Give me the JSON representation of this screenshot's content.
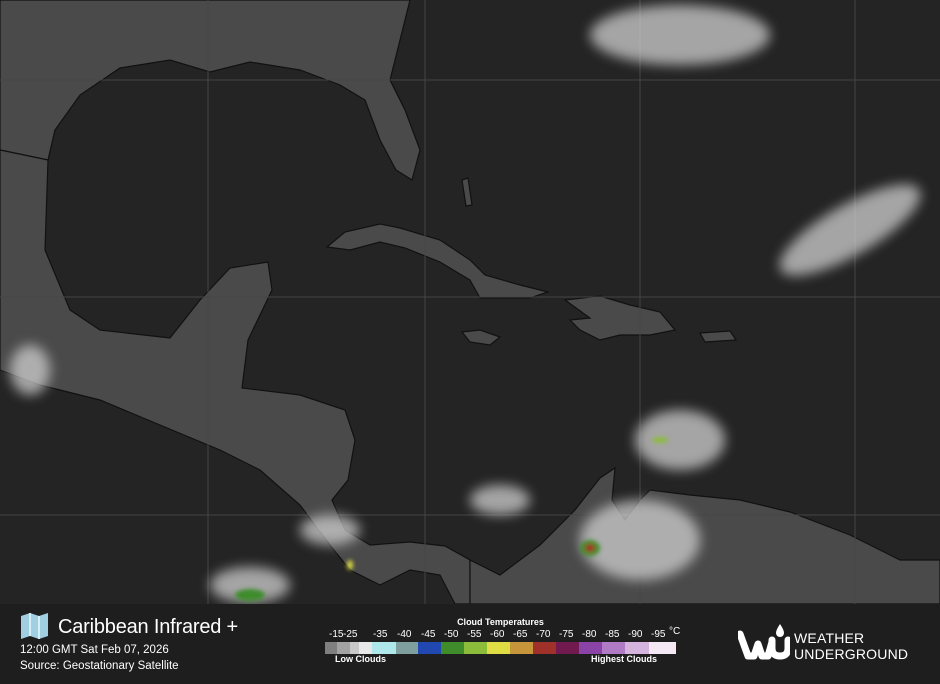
{
  "map": {
    "colors": {
      "ocean": "#242424",
      "land": "#4a4a4a",
      "grid": "#454545",
      "clouds": "#d8d8d8"
    }
  },
  "footer": {
    "icon": "map-icon",
    "title": "Caribbean Infrared +",
    "timestamp": "12:00 GMT Sat Feb 07, 2026",
    "source": "Source: Geostationary Satellite",
    "legend": {
      "title": "Cloud Temperatures",
      "unit": "°C",
      "low_label": "Low Clouds",
      "high_label": "Highest Clouds",
      "ticks": [
        "-15",
        "-25",
        "-35",
        "-40",
        "-45",
        "-50",
        "-55",
        "-60",
        "-65",
        "-70",
        "-75",
        "-80",
        "-85",
        "-90",
        "-95"
      ],
      "colors": [
        "#7f7f7f",
        "#a2a2a2",
        "#c8c8c8",
        "#e8e8e8",
        "#aee8ea",
        "#7f9f9f",
        "#2048b0",
        "#3e8c2a",
        "#8cbc3a",
        "#dede44",
        "#c8963a",
        "#a0302a",
        "#701a50",
        "#8a44a8",
        "#b07ac4",
        "#d4b4dc",
        "#f4e8f4"
      ]
    },
    "brand": {
      "line1": "WEATHER",
      "line2": "UNDERGROUND",
      "mark": "wu"
    }
  }
}
